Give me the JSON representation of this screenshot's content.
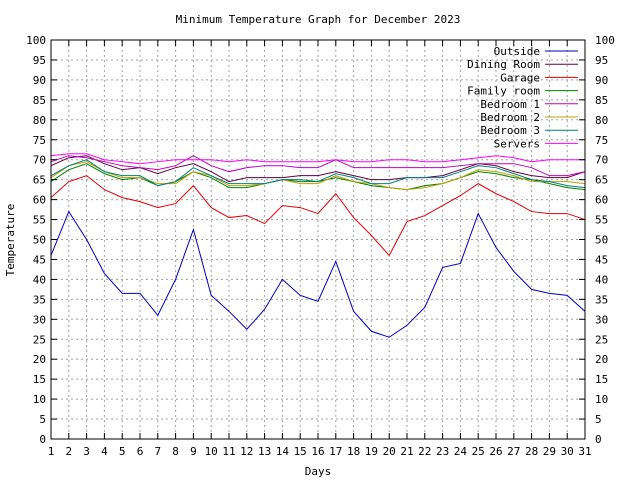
{
  "chart_data": {
    "type": "line",
    "title": "Minimum Temperature Graph for December 2023",
    "xlabel": "Days",
    "ylabel": "Temperature",
    "xlim": [
      1,
      31
    ],
    "ylim": [
      0,
      100
    ],
    "grid": true,
    "legend_position": "top-right",
    "x": [
      1,
      2,
      3,
      4,
      5,
      6,
      7,
      8,
      9,
      10,
      11,
      12,
      13,
      14,
      15,
      16,
      17,
      18,
      19,
      20,
      21,
      22,
      23,
      24,
      25,
      26,
      27,
      28,
      29,
      30,
      31
    ],
    "x_ticks": [
      "1",
      "2",
      "3",
      "4",
      "5",
      "6",
      "7",
      "8",
      "9",
      "10",
      "11",
      "12",
      "13",
      "14",
      "15",
      "16",
      "17",
      "18",
      "19",
      "20",
      "21",
      "22",
      "23",
      "24",
      "25",
      "26",
      "27",
      "28",
      "29",
      "30",
      "31"
    ],
    "y_ticks": [
      "0",
      "5",
      "10",
      "15",
      "20",
      "25",
      "30",
      "35",
      "40",
      "45",
      "50",
      "55",
      "60",
      "65",
      "70",
      "75",
      "80",
      "85",
      "90",
      "95",
      "100"
    ],
    "series": [
      {
        "name": "Outside",
        "color": "#0000c0",
        "values": [
          46,
          57,
          50,
          41.5,
          36.5,
          36.5,
          31,
          40,
          52.5,
          36,
          32,
          27.5,
          32.5,
          40,
          36,
          34.5,
          44.5,
          32,
          27,
          25.5,
          28.5,
          33,
          43,
          44,
          56.5,
          48,
          42,
          37.5,
          36.5,
          36,
          32
        ]
      },
      {
        "name": "Dining Room",
        "color": "#600040",
        "values": [
          68.5,
          70.5,
          71,
          69,
          67.5,
          68,
          66.5,
          68,
          69,
          67,
          64.5,
          65.5,
          65.5,
          65.5,
          66,
          66,
          67,
          66,
          65,
          65,
          65.5,
          65.5,
          66,
          67.5,
          69,
          68.5,
          67,
          66,
          65.5,
          65.5,
          67
        ]
      },
      {
        "name": "Garage",
        "color": "#e00000",
        "values": [
          60.5,
          64.5,
          66,
          62.5,
          60.5,
          59.5,
          58,
          59,
          63.5,
          58,
          55.5,
          56,
          54,
          58.5,
          58,
          56.5,
          61.5,
          55.5,
          51,
          46,
          54.5,
          56,
          58.5,
          61,
          64,
          61.5,
          59.5,
          57,
          56.5,
          56.5,
          55
        ]
      },
      {
        "name": "Family room",
        "color": "#008000",
        "values": [
          64.5,
          67.5,
          69,
          66.5,
          65,
          65.5,
          63.5,
          64.5,
          67,
          65.5,
          63,
          63,
          64,
          65,
          64.5,
          64.5,
          65.5,
          64.5,
          63.5,
          63,
          62.5,
          63.5,
          64,
          65.5,
          67,
          66.5,
          65.5,
          65,
          64,
          63,
          62.5
        ]
      },
      {
        "name": "Bedroom 1",
        "color": "#c000c0",
        "values": [
          69.5,
          71,
          70.5,
          69.5,
          68.5,
          68,
          67.5,
          68.5,
          71,
          68.5,
          67,
          68,
          68.5,
          68.5,
          68,
          68,
          70,
          68,
          68,
          68,
          68,
          68,
          68,
          68.5,
          69,
          69,
          69,
          68,
          66,
          66,
          67
        ]
      },
      {
        "name": "Bedroom 2",
        "color": "#c0a000",
        "values": [
          65.5,
          68.5,
          69.5,
          67,
          65.5,
          65.5,
          64,
          64,
          67,
          66,
          63.5,
          63.5,
          64,
          65,
          64,
          64,
          66,
          64.5,
          64,
          63,
          62.5,
          63,
          64,
          65.5,
          67.5,
          67,
          66,
          64.5,
          64.5,
          64.5,
          64
        ]
      },
      {
        "name": "Bedroom 3",
        "color": "#008080",
        "values": [
          66,
          68.5,
          70,
          67,
          66,
          66,
          63.5,
          64.5,
          68,
          66,
          64,
          64,
          64,
          65,
          65,
          64.5,
          66.5,
          65.5,
          64,
          64,
          65.5,
          65.5,
          65.5,
          67,
          68.5,
          68,
          66.5,
          65,
          64.5,
          63.5,
          63
        ]
      },
      {
        "name": "Servers",
        "color": "#ff00ff",
        "values": [
          71,
          71.5,
          71.5,
          70,
          69.5,
          69,
          69.5,
          70,
          70,
          70,
          69.5,
          70,
          69.5,
          69.5,
          69.5,
          69.5,
          70,
          69.5,
          69.5,
          70,
          70,
          69.5,
          69.5,
          70,
          70.5,
          71,
          70.5,
          69.5,
          70,
          70,
          70
        ]
      }
    ]
  }
}
